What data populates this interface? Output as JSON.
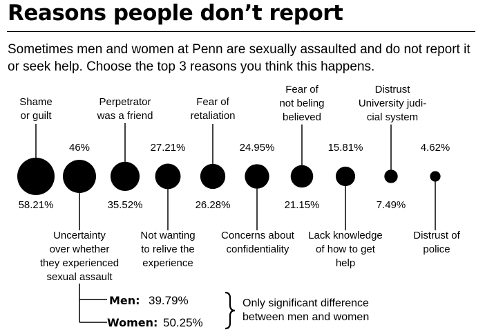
{
  "title": "Reasons people don’t report",
  "subtitle": "Sometimes men and women at Penn are sexually assaulted and do not report it or seek help. Choose the top 3 reasons you think this happens.",
  "chart_data": {
    "type": "bubble",
    "title": "Reasons people don’t report",
    "unit": "%",
    "categories": [
      "Shame or guilt",
      "Uncertainty over whether they experienced sexual assault",
      "Perpetrator was a friend",
      "Not wanting to relive the experience",
      "Fear of retaliation",
      "Concerns about confidentiality",
      "Fear of not beling believed",
      "Lack knowledge of how to get help",
      "Distrust University judicial system",
      "Distrust of police"
    ],
    "values": [
      58.21,
      46,
      35.52,
      27.21,
      26.28,
      24.95,
      21.15,
      15.81,
      7.49,
      4.62
    ],
    "items": [
      {
        "label_lines": [
          "Shame",
          "or guilt"
        ],
        "value_text": "58.21%"
      },
      {
        "label_lines": [
          "Uncertainty",
          "over whether",
          "they experienced",
          "sexual assault"
        ],
        "value_text": "46%"
      },
      {
        "label_lines": [
          "Perpetrator",
          "was a friend"
        ],
        "value_text": "35.52%"
      },
      {
        "label_lines": [
          "Not wanting",
          "to relive the",
          "experience"
        ],
        "value_text": "27.21%"
      },
      {
        "label_lines": [
          "Fear of",
          "retaliation"
        ],
        "value_text": "26.28%"
      },
      {
        "label_lines": [
          "Concerns about",
          "confidentiality"
        ],
        "value_text": "24.95%"
      },
      {
        "label_lines": [
          "Fear of",
          "not beling",
          "believed"
        ],
        "value_text": "21.15%"
      },
      {
        "label_lines": [
          "Lack knowledge",
          "of how to get",
          "help"
        ],
        "value_text": "15.81%"
      },
      {
        "label_lines": [
          "Distrust",
          "University judi-",
          "cial system"
        ],
        "value_text": "7.49%"
      },
      {
        "label_lines": [
          "Distrust of",
          "police"
        ],
        "value_text": "4.62%"
      }
    ],
    "breakdown": {
      "category": "Uncertainty over whether they experienced sexual assault",
      "series": [
        {
          "name": "Men:",
          "value": 39.79,
          "value_text": "39.79%"
        },
        {
          "name": "Women:",
          "value": 50.25,
          "value_text": "50.25%"
        }
      ],
      "note_lines": [
        "Only significant difference",
        "between men and women"
      ]
    }
  }
}
